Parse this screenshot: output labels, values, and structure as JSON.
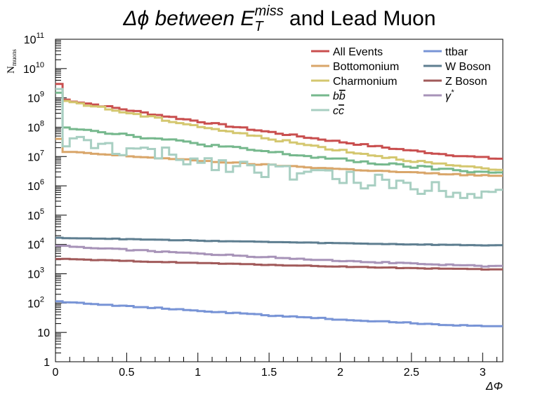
{
  "chart_data": {
    "type": "line",
    "style": "step-histogram",
    "title_parts": {
      "prefix": "Δϕ between E",
      "superscript": "miss",
      "subscript": "T",
      "suffix": " and Lead Muon"
    },
    "xlabel": "ΔΦ",
    "ylabel": {
      "main": "N",
      "subscript": "muons"
    },
    "xlim": [
      0,
      3.1416
    ],
    "ylim": [
      1,
      100000000000.0
    ],
    "yscale": "log",
    "grid": false,
    "legend_placement": "top-right",
    "x_ticks": [
      "0",
      "0.5",
      "1",
      "1.5",
      "2",
      "2.5",
      "3"
    ],
    "y_ticks": [
      {
        "base": "10",
        "exp": "11"
      },
      {
        "base": "10",
        "exp": "10"
      },
      {
        "base": "10",
        "exp": "9"
      },
      {
        "base": "10",
        "exp": "8"
      },
      {
        "base": "10",
        "exp": "7"
      },
      {
        "base": "10",
        "exp": "6"
      },
      {
        "base": "10",
        "exp": "5"
      },
      {
        "base": "10",
        "exp": "4"
      },
      {
        "base": "10",
        "exp": "3"
      },
      {
        "base": "10",
        "exp": "2"
      },
      {
        "base": "10",
        "exp": ""
      },
      {
        "base": "1",
        "exp": ""
      }
    ],
    "nbins": 63,
    "series": [
      {
        "name": "All Events",
        "color": "#c94f4f",
        "start": 950000000.0,
        "end": 8500000.0,
        "noise": 0.03,
        "first_spike": 3000000000.0
      },
      {
        "name": "Bottomonium",
        "color": "#d9a66a",
        "start": 15000000.0,
        "end": 2200000.0,
        "noise": 0.02,
        "first_spike": 40000000.0
      },
      {
        "name": "Charmonium",
        "color": "#d4c76f",
        "start": 900000000.0,
        "end": 3500000.0,
        "noise": 0.04,
        "first_spike": 2000000000.0
      },
      {
        "name": "bb",
        "color": "#76b88d",
        "start": 110000000.0,
        "end": 2800000.0,
        "noise": 0.05,
        "first_spike": 1500000000.0
      },
      {
        "name": "cc",
        "color": "#a8cfc2",
        "start": 35000000.0,
        "end": 600000.0,
        "noise": 0.28,
        "first_spike": 2000000000.0
      },
      {
        "name": "ttbar",
        "color": "#7894d6",
        "start": 115,
        "end": 16,
        "noise": 0.02,
        "first_spike": 115
      },
      {
        "name": "W Boson",
        "color": "#5e7e90",
        "start": 17000.0,
        "end": 9300.0,
        "noise": 0.01,
        "first_spike": 17000.0
      },
      {
        "name": "Z Boson",
        "color": "#a15a5a",
        "start": 3200.0,
        "end": 1400.0,
        "noise": 0.01,
        "first_spike": 3200.0
      },
      {
        "name": "γ*",
        "color": "#a793b8",
        "start": 9000.0,
        "end": 1800.0,
        "noise": 0.02,
        "first_spike": 9000.0
      }
    ],
    "legend_labels": [
      {
        "text": "All Events",
        "italic": false
      },
      {
        "text": "Bottomonium",
        "italic": false
      },
      {
        "text": "Charmonium",
        "italic": false
      },
      {
        "text": "bb",
        "italic": true,
        "overline_second": true
      },
      {
        "text": "cc",
        "italic": true,
        "overline_second": true
      },
      {
        "text": "ttbar",
        "italic": false
      },
      {
        "text": "W Boson",
        "italic": false
      },
      {
        "text": "Z Boson",
        "italic": false
      },
      {
        "text": "γ",
        "italic": true,
        "sup": "*"
      }
    ]
  }
}
